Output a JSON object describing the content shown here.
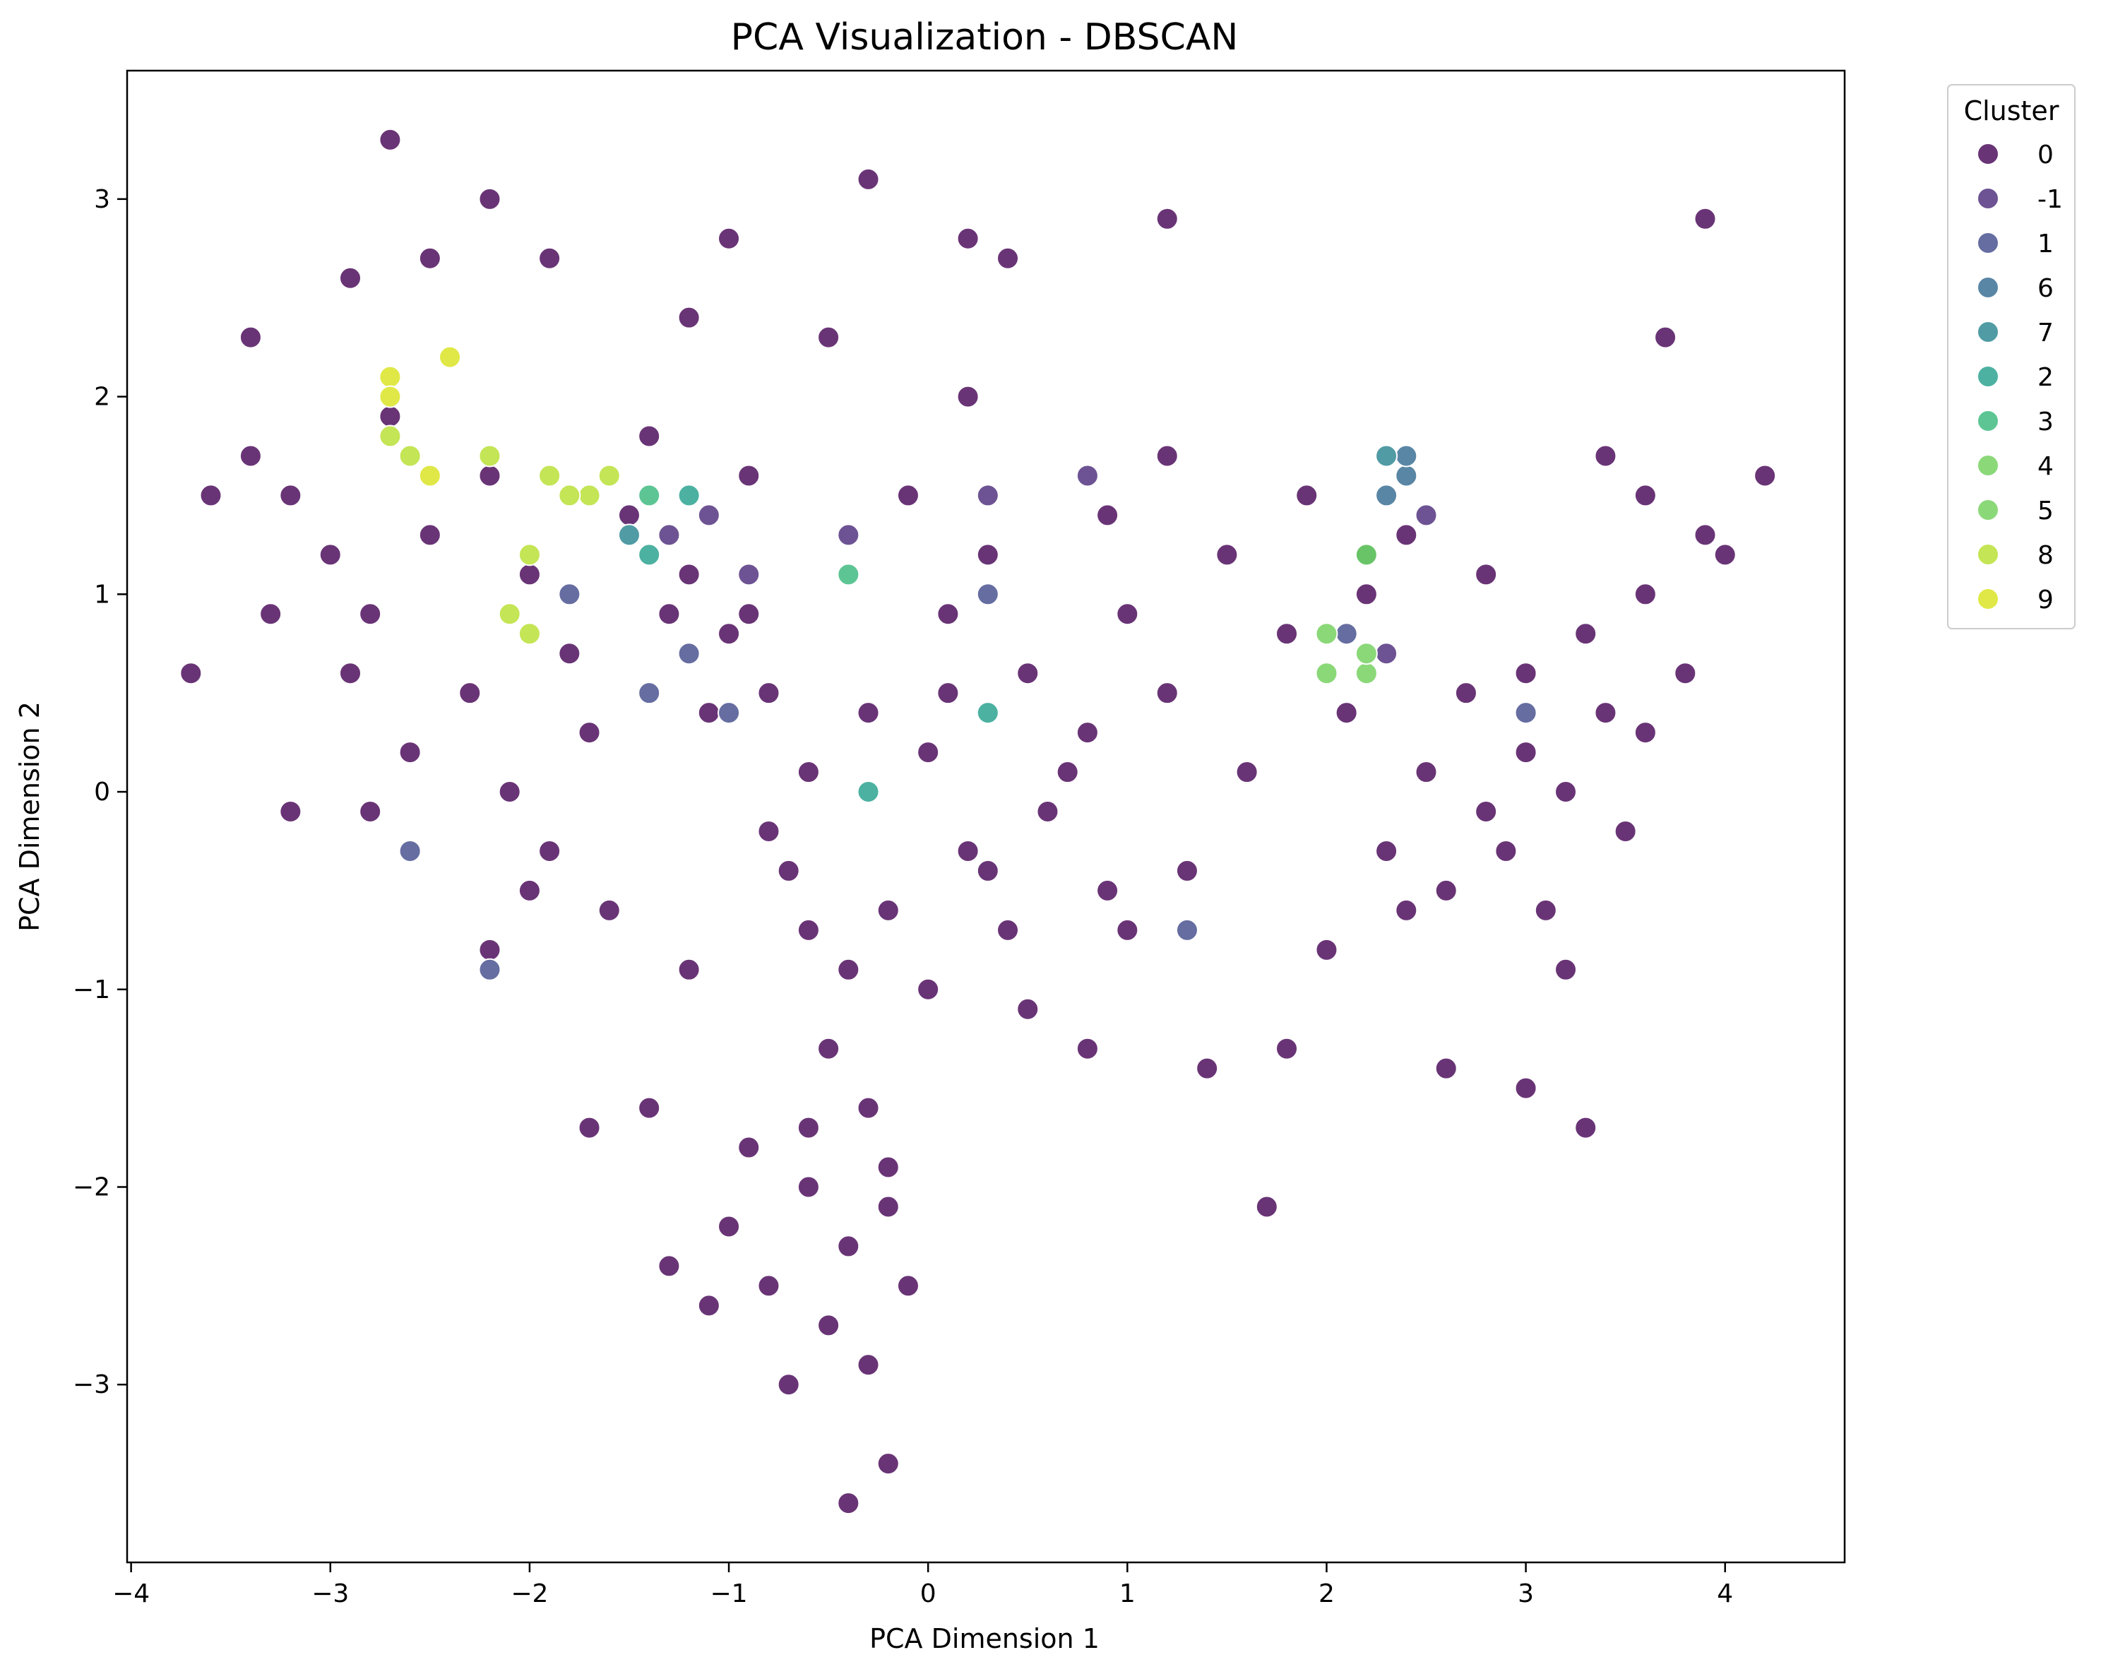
{
  "chart_data": {
    "type": "scatter",
    "title": "PCA Visualization - DBSCAN",
    "xlabel": "PCA Dimension 1",
    "ylabel": "PCA Dimension 2",
    "xlim": [
      -4.02,
      4.6
    ],
    "ylim": [
      -3.9,
      3.65
    ],
    "xticks": [
      -4,
      -3,
      -2,
      -1,
      0,
      1,
      2,
      3,
      4
    ],
    "yticks": [
      -3,
      -2,
      -1,
      0,
      1,
      2,
      3
    ],
    "grid": false,
    "legend": {
      "title": "Cluster",
      "placement": "outside-top-right",
      "entries": [
        {
          "label": "0",
          "color": "#440154"
        },
        {
          "label": "-1",
          "color": "#482878"
        },
        {
          "label": "1",
          "color": "#3e4989"
        },
        {
          "label": "6",
          "color": "#31688e"
        },
        {
          "label": "7",
          "color": "#26828e"
        },
        {
          "label": "2",
          "color": "#1f9e89"
        },
        {
          "label": "3",
          "color": "#35b779"
        },
        {
          "label": "4",
          "color": "#6ece58"
        },
        {
          "label": "5",
          "color": "#6ece58"
        },
        {
          "label": "8",
          "color": "#b5de2b"
        },
        {
          "label": "9",
          "color": "#d8e219"
        }
      ]
    },
    "series": [
      {
        "name": "0",
        "points": [
          [
            0.0,
            0.2
          ],
          [
            -0.3,
            0.4
          ],
          [
            0.2,
            -0.3
          ],
          [
            -0.6,
            0.1
          ],
          [
            0.5,
            0.6
          ],
          [
            -0.2,
            -0.6
          ],
          [
            0.1,
            0.9
          ],
          [
            -0.8,
            0.5
          ],
          [
            0.6,
            -0.1
          ],
          [
            -0.4,
            -0.9
          ],
          [
            0.3,
            1.2
          ],
          [
            -1.0,
            0.8
          ],
          [
            0.8,
            0.3
          ],
          [
            -0.5,
            -1.3
          ],
          [
            0.0,
            -1.0
          ],
          [
            -0.7,
            -0.4
          ],
          [
            0.4,
            -0.7
          ],
          [
            -1.2,
            1.1
          ],
          [
            1.0,
            0.9
          ],
          [
            -0.1,
            1.5
          ],
          [
            -0.3,
            -1.6
          ],
          [
            -0.6,
            -2.0
          ],
          [
            -0.4,
            -2.3
          ],
          [
            -0.8,
            -2.5
          ],
          [
            -0.2,
            -2.1
          ],
          [
            -1.0,
            -2.2
          ],
          [
            -0.5,
            -2.7
          ],
          [
            -0.9,
            -1.8
          ],
          [
            -0.3,
            -2.9
          ],
          [
            -0.7,
            -3.0
          ],
          [
            -0.4,
            -3.6
          ],
          [
            -0.2,
            -3.4
          ],
          [
            -1.1,
            -2.6
          ],
          [
            -0.6,
            -1.7
          ],
          [
            -0.1,
            -2.5
          ],
          [
            -3.0,
            1.2
          ],
          [
            -2.8,
            0.9
          ],
          [
            -2.5,
            1.3
          ],
          [
            -3.2,
            1.5
          ],
          [
            -2.3,
            0.5
          ],
          [
            -2.6,
            0.2
          ],
          [
            -2.0,
            1.1
          ],
          [
            -1.8,
            0.7
          ],
          [
            -2.2,
            1.6
          ],
          [
            -3.4,
            1.7
          ],
          [
            -2.7,
            1.9
          ],
          [
            -1.5,
            1.4
          ],
          [
            -1.3,
            0.9
          ],
          [
            -1.7,
            0.3
          ],
          [
            -2.9,
            0.6
          ],
          [
            -3.6,
            1.5
          ],
          [
            -3.3,
            0.9
          ],
          [
            -2.1,
            0.0
          ],
          [
            -1.6,
            -0.6
          ],
          [
            -1.9,
            -0.3
          ],
          [
            -1.4,
            1.8
          ],
          [
            -0.9,
            1.6
          ],
          [
            -1.1,
            0.4
          ],
          [
            -0.8,
            -0.2
          ],
          [
            -1.2,
            -0.9
          ],
          [
            3.0,
            0.2
          ],
          [
            3.2,
            0.0
          ],
          [
            2.9,
            -0.3
          ],
          [
            3.4,
            0.4
          ],
          [
            3.1,
            -0.6
          ],
          [
            2.7,
            0.5
          ],
          [
            3.3,
            0.8
          ],
          [
            2.8,
            -0.1
          ],
          [
            3.5,
            -0.2
          ],
          [
            3.0,
            0.6
          ],
          [
            2.6,
            -0.5
          ],
          [
            3.6,
            0.3
          ],
          [
            2.5,
            0.1
          ],
          [
            3.2,
            -0.9
          ],
          [
            3.8,
            0.6
          ],
          [
            3.9,
            1.3
          ],
          [
            4.2,
            1.6
          ],
          [
            3.6,
            1.5
          ],
          [
            2.2,
            1.0
          ],
          [
            1.8,
            0.8
          ],
          [
            1.5,
            1.2
          ],
          [
            1.2,
            0.5
          ],
          [
            1.6,
            0.1
          ],
          [
            1.3,
            -0.4
          ],
          [
            1.0,
            -0.7
          ],
          [
            1.4,
            -1.4
          ],
          [
            1.8,
            -1.3
          ],
          [
            2.0,
            -0.8
          ],
          [
            2.3,
            -0.3
          ],
          [
            0.9,
            1.4
          ],
          [
            1.2,
            1.7
          ],
          [
            1.9,
            1.5
          ],
          [
            2.4,
            1.3
          ],
          [
            2.8,
            1.1
          ],
          [
            3.4,
            1.7
          ],
          [
            0.2,
            2.0
          ],
          [
            -0.5,
            2.3
          ],
          [
            -1.2,
            2.4
          ],
          [
            -0.3,
            3.1
          ],
          [
            -2.2,
            3.0
          ],
          [
            -2.7,
            3.3
          ],
          [
            0.4,
            2.7
          ],
          [
            1.2,
            2.9
          ],
          [
            -3.7,
            0.6
          ],
          [
            -3.2,
            -0.1
          ],
          [
            -2.8,
            -0.1
          ],
          [
            -2.0,
            -0.5
          ],
          [
            -2.2,
            -0.8
          ],
          [
            -1.7,
            -1.7
          ],
          [
            -1.4,
            -1.6
          ],
          [
            0.5,
            -1.1
          ],
          [
            0.8,
            -1.3
          ],
          [
            -1.3,
            -2.4
          ],
          [
            -0.2,
            -1.9
          ],
          [
            0.3,
            -0.4
          ],
          [
            0.7,
            0.1
          ],
          [
            -0.9,
            0.9
          ],
          [
            0.1,
            0.5
          ],
          [
            -0.6,
            -0.7
          ],
          [
            0.9,
            -0.5
          ],
          [
            2.1,
            0.4
          ],
          [
            2.4,
            -0.6
          ],
          [
            3.0,
            -1.5
          ],
          [
            3.3,
            -1.7
          ],
          [
            1.7,
            -2.1
          ],
          [
            2.6,
            -1.4
          ],
          [
            3.9,
            2.9
          ],
          [
            3.7,
            2.3
          ],
          [
            4.0,
            1.2
          ],
          [
            3.6,
            1.0
          ],
          [
            -2.5,
            2.7
          ],
          [
            -1.9,
            2.7
          ],
          [
            -3.4,
            2.3
          ],
          [
            -2.9,
            2.6
          ],
          [
            -1.0,
            2.8
          ],
          [
            0.2,
            2.8
          ]
        ]
      },
      {
        "name": "-1",
        "points": [
          [
            -1.3,
            1.3
          ],
          [
            -0.9,
            1.1
          ],
          [
            -1.1,
            1.4
          ],
          [
            0.3,
            1.5
          ],
          [
            2.3,
            0.7
          ],
          [
            -0.4,
            1.3
          ],
          [
            2.5,
            1.4
          ],
          [
            0.8,
            1.6
          ]
        ]
      },
      {
        "name": "1",
        "points": [
          [
            -1.4,
            0.5
          ],
          [
            -2.6,
            -0.3
          ],
          [
            -2.2,
            -0.9
          ],
          [
            -1.0,
            0.4
          ],
          [
            -1.8,
            1.0
          ],
          [
            -1.2,
            0.7
          ],
          [
            0.3,
            1.0
          ],
          [
            1.3,
            -0.7
          ],
          [
            2.1,
            0.8
          ],
          [
            3.0,
            0.4
          ]
        ]
      },
      {
        "name": "6",
        "points": [
          [
            2.4,
            1.6
          ],
          [
            2.4,
            1.7
          ],
          [
            2.3,
            1.5
          ]
        ]
      },
      {
        "name": "7",
        "points": [
          [
            2.3,
            1.7
          ],
          [
            2.2,
            1.2
          ],
          [
            -1.5,
            1.3
          ]
        ]
      },
      {
        "name": "2",
        "points": [
          [
            -1.4,
            1.2
          ],
          [
            -1.2,
            1.5
          ],
          [
            0.3,
            0.4
          ],
          [
            -0.3,
            0.0
          ]
        ]
      },
      {
        "name": "3",
        "points": [
          [
            -1.4,
            1.5
          ],
          [
            -0.4,
            1.1
          ]
        ]
      },
      {
        "name": "4",
        "points": [
          [
            2.0,
            0.6
          ],
          [
            2.2,
            0.6
          ]
        ]
      },
      {
        "name": "5",
        "points": [
          [
            2.2,
            0.7
          ],
          [
            2.0,
            0.8
          ],
          [
            2.2,
            1.2
          ]
        ]
      },
      {
        "name": "8",
        "points": [
          [
            -1.9,
            1.6
          ],
          [
            -1.6,
            1.6
          ],
          [
            -2.1,
            0.9
          ],
          [
            -1.7,
            1.5
          ],
          [
            -2.2,
            1.7
          ],
          [
            -2.0,
            1.2
          ],
          [
            -2.0,
            0.8
          ],
          [
            -2.7,
            1.8
          ],
          [
            -2.6,
            1.7
          ],
          [
            -1.8,
            1.5
          ]
        ]
      },
      {
        "name": "9",
        "points": [
          [
            -2.7,
            2.1
          ],
          [
            -2.4,
            2.2
          ],
          [
            -2.7,
            2.0
          ],
          [
            -2.5,
            1.6
          ]
        ]
      }
    ]
  }
}
